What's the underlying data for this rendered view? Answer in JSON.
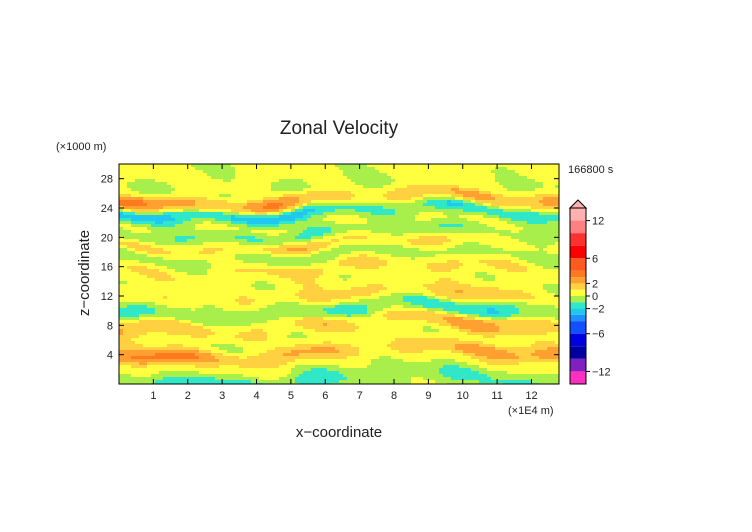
{
  "chart_data": {
    "type": "heatmap",
    "title": "Zonal Velocity",
    "time_label": "166800 s",
    "xlabel": "x−coordinate",
    "ylabel": "z−coordinate",
    "x_unit": "(×1E4 m)",
    "y_unit": "(×1000 m)",
    "xlim": [
      0,
      12.8
    ],
    "ylim": [
      0,
      30
    ],
    "x_ticks": [
      1,
      2,
      3,
      4,
      5,
      6,
      7,
      8,
      9,
      10,
      11,
      12
    ],
    "y_ticks": [
      4,
      8,
      12,
      16,
      20,
      24,
      28
    ],
    "colorbar": {
      "tick_labels": [
        "12",
        "6",
        "2",
        "0",
        "−2",
        "−6",
        "−12"
      ],
      "tick_values": [
        12,
        6,
        2,
        0,
        -2,
        -6,
        -12
      ],
      "range": [
        -14,
        14
      ],
      "levels": [
        {
          "from": 12,
          "to": 14,
          "color": "#ffb0b0"
        },
        {
          "from": 10,
          "to": 12,
          "color": "#ff8080"
        },
        {
          "from": 8,
          "to": 10,
          "color": "#ff3030"
        },
        {
          "from": 6,
          "to": 8,
          "color": "#ff0000"
        },
        {
          "from": 4,
          "to": 6,
          "color": "#ff5a1e"
        },
        {
          "from": 3,
          "to": 4,
          "color": "#ff7a1e"
        },
        {
          "from": 2,
          "to": 3,
          "color": "#ffa030"
        },
        {
          "from": 1,
          "to": 2,
          "color": "#ffd040"
        },
        {
          "from": 0,
          "to": 1,
          "color": "#ffff40"
        },
        {
          "from": -1,
          "to": 0,
          "color": "#a8ef4c"
        },
        {
          "from": -2,
          "to": -1,
          "color": "#30e8c8"
        },
        {
          "from": -3,
          "to": -2,
          "color": "#20c8f0"
        },
        {
          "from": -4,
          "to": -3,
          "color": "#2090ff"
        },
        {
          "from": -6,
          "to": -4,
          "color": "#1050ff"
        },
        {
          "from": -8,
          "to": -6,
          "color": "#0000e0"
        },
        {
          "from": -10,
          "to": -8,
          "color": "#0000a0"
        },
        {
          "from": -12,
          "to": -10,
          "color": "#8020c0"
        },
        {
          "from": -14,
          "to": -12,
          "color": "#ff30c0"
        }
      ]
    },
    "field_description_bands_z_velocity": [
      {
        "z": 1.0,
        "u": -1.5
      },
      {
        "z": 2.5,
        "u": 0.5
      },
      {
        "z": 4.3,
        "u": 3.0
      },
      {
        "z": 6.0,
        "u": 0.5
      },
      {
        "z": 8.0,
        "u": 2.0
      },
      {
        "z": 10.0,
        "u": -1.5
      },
      {
        "z": 12.0,
        "u": 1.5
      },
      {
        "z": 14.0,
        "u": 0.5
      },
      {
        "z": 16.0,
        "u": 1.5
      },
      {
        "z": 17.5,
        "u": -1.0
      },
      {
        "z": 19.0,
        "u": 2.0
      },
      {
        "z": 20.5,
        "u": -1.5
      },
      {
        "z": 22.0,
        "u": 0.5
      },
      {
        "z": 23.3,
        "u": -3.0
      },
      {
        "z": 25.0,
        "u": 3.0
      },
      {
        "z": 27.0,
        "u": 0.0
      },
      {
        "z": 29.0,
        "u": 0.5
      }
    ]
  }
}
